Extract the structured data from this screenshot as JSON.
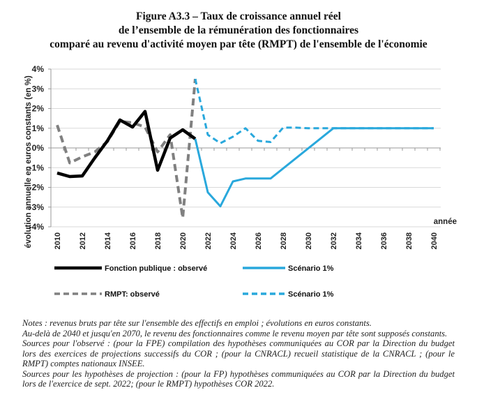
{
  "title_lines": [
    "Figure A3.3 –  Taux de croissance annuel réel",
    "de l’ensemble de la rémunération des fonctionnaires",
    "comparé au revenu d'activité moyen par tête (RMPT) de l'ensemble de l'économie"
  ],
  "chart_data": {
    "type": "line",
    "title": "Taux de croissance annuel réel de l’ensemble de la rémunération des fonctionnaires comparé au revenu d'activité moyen par tête (RMPT) de l'ensemble de l'économie",
    "xlabel": "année",
    "ylabel": "évolution annuelle en euros constants (en %)",
    "xlim": [
      2010,
      2040
    ],
    "ylim": [
      -4,
      4
    ],
    "x_ticks": [
      "2010",
      "2012",
      "2014",
      "2016",
      "2018",
      "2020",
      "2022",
      "2024",
      "2026",
      "2028",
      "2030",
      "2032",
      "2034",
      "2036",
      "2038",
      "2040"
    ],
    "y_ticks": [
      "4%",
      "3%",
      "2%",
      "1%",
      "0%",
      "-1%",
      "-2%",
      "-3%",
      "-4%"
    ],
    "grid": "horizontal",
    "legend_position": "bottom",
    "series": [
      {
        "name": "Fonction publique : observé",
        "style": "solid",
        "color": "#000000",
        "points": [
          [
            2010,
            -1.27
          ],
          [
            2011,
            -1.45
          ],
          [
            2012,
            -1.42
          ],
          [
            2013,
            -0.5
          ],
          [
            2014,
            0.36
          ],
          [
            2015,
            1.42
          ],
          [
            2016,
            1.06
          ],
          [
            2017,
            1.85
          ],
          [
            2018,
            -1.13
          ],
          [
            2019,
            0.5
          ],
          [
            2020,
            0.92
          ],
          [
            2021,
            0.46
          ]
        ]
      },
      {
        "name": "Scénario 1%",
        "style": "solid",
        "color": "#29a8dc",
        "points": [
          [
            2021,
            0.46
          ],
          [
            2022,
            -2.25
          ],
          [
            2023,
            -2.96
          ],
          [
            2024,
            -1.7
          ],
          [
            2025,
            -1.55
          ],
          [
            2026,
            -1.55
          ],
          [
            2027,
            -1.55
          ],
          [
            2032,
            1.0
          ],
          [
            2033,
            1.0
          ],
          [
            2034,
            1.0
          ],
          [
            2035,
            1.0
          ],
          [
            2036,
            1.0
          ],
          [
            2037,
            1.0
          ],
          [
            2038,
            1.0
          ],
          [
            2039,
            1.0
          ],
          [
            2040,
            1.0
          ]
        ]
      },
      {
        "name": "RMPT: observé",
        "style": "dashed",
        "color": "#808080",
        "points": [
          [
            2010,
            1.16
          ],
          [
            2011,
            -0.76
          ],
          [
            2012,
            -0.45
          ],
          [
            2013,
            -0.2
          ],
          [
            2014,
            0.32
          ],
          [
            2015,
            1.35
          ],
          [
            2016,
            1.28
          ],
          [
            2017,
            1.06
          ],
          [
            2018,
            -0.2
          ],
          [
            2019,
            0.67
          ],
          [
            2020,
            -3.55
          ],
          [
            2021,
            3.5
          ]
        ]
      },
      {
        "name": "Scénario 1%",
        "style": "dashed",
        "color": "#29a8dc",
        "points": [
          [
            2021,
            3.5
          ],
          [
            2022,
            0.67
          ],
          [
            2023,
            0.24
          ],
          [
            2024,
            0.57
          ],
          [
            2025,
            1.0
          ],
          [
            2026,
            0.36
          ],
          [
            2027,
            0.3
          ],
          [
            2028,
            1.03
          ],
          [
            2029,
            1.03
          ],
          [
            2030,
            1.0
          ],
          [
            2031,
            1.0
          ],
          [
            2032,
            1.0
          ],
          [
            2033,
            1.0
          ],
          [
            2034,
            1.0
          ],
          [
            2035,
            1.0
          ],
          [
            2036,
            1.0
          ],
          [
            2037,
            1.0
          ],
          [
            2038,
            1.0
          ],
          [
            2039,
            1.0
          ],
          [
            2040,
            1.0
          ]
        ]
      }
    ]
  },
  "legend": [
    {
      "label": "Fonction publique : observé",
      "style": "solid",
      "color": "#000000"
    },
    {
      "label": "Scénario 1%",
      "style": "solid",
      "color": "#29a8dc"
    },
    {
      "label": "RMPT: observé",
      "style": "dashed",
      "color": "#808080"
    },
    {
      "label": "Scénario 1%",
      "style": "dashed",
      "color": "#29a8dc"
    }
  ],
  "notes": [
    "Notes : revenus bruts par tête sur l'ensemble des effectifs en emploi ; évolutions en euros constants.",
    "Au-delà de 2040 et jusqu'en 2070, le revenu des fonctionnaires comme le revenu moyen par tête sont supposés constants.",
    "Sources pour l'observé : (pour la FPE) compilation des hypothèses communiquées au COR par la Direction du budget lors des exercices de projections successifs du COR ; (pour la CNRACL) recueil statistique de la CNRACL ; (pour le RMPT) comptes nationaux INSEE.",
    "Sources pour les hypothèses de projection : (pour la FP) hypothèses communiquées au COR par la Direction du budget lors de l'exercice de sept. 2022; (pour le RMPT) hypothèses COR 2022."
  ]
}
